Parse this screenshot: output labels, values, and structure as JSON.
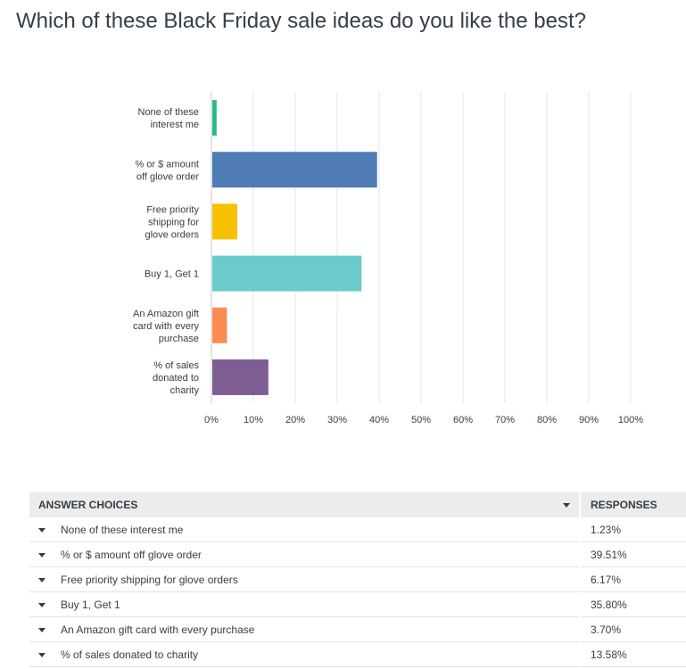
{
  "question": "Which of these Black Friday sale ideas do you like the best?",
  "table": {
    "col_choices": "ANSWER CHOICES",
    "col_responses": "RESPONSES",
    "rows": [
      {
        "choice": "None of these interest me",
        "response": "1.23%"
      },
      {
        "choice": "% or $ amount off glove order",
        "response": "39.51%"
      },
      {
        "choice": "Free priority shipping for glove orders",
        "response": "6.17%"
      },
      {
        "choice": "Buy 1, Get 1",
        "response": "35.80%"
      },
      {
        "choice": "An Amazon gift card with every purchase",
        "response": "3.70%"
      },
      {
        "choice": "% of sales donated to charity",
        "response": "13.58%"
      }
    ]
  },
  "chart_data": {
    "type": "bar",
    "orientation": "horizontal",
    "title": "",
    "xlabel": "",
    "ylabel": "",
    "xlim": [
      0,
      100
    ],
    "grid": true,
    "ticks": [
      "0%",
      "10%",
      "20%",
      "30%",
      "40%",
      "50%",
      "60%",
      "70%",
      "80%",
      "90%",
      "100%"
    ],
    "categories": [
      [
        "None of these",
        "interest me"
      ],
      [
        "% or $ amount",
        "off glove order"
      ],
      [
        "Free priority",
        "shipping for",
        "glove orders"
      ],
      [
        "Buy 1, Get 1"
      ],
      [
        "An Amazon gift",
        "card with every",
        "purchase"
      ],
      [
        "% of sales",
        "donated to",
        "charity"
      ]
    ],
    "values": [
      1.23,
      39.51,
      6.17,
      35.8,
      3.7,
      13.58
    ],
    "colors": [
      "#1fbf84",
      "#507cb6",
      "#f8c100",
      "#6ccbcb",
      "#fd8b51",
      "#7d5e92"
    ]
  }
}
